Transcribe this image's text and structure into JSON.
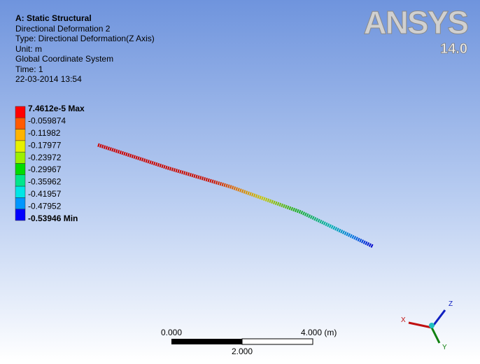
{
  "header": {
    "title": "A: Static Structural",
    "lines": [
      "Directional Deformation 2",
      "Type: Directional Deformation(Z Axis)",
      "Unit: m",
      "Global Coordinate System",
      "Time: 1",
      "22-03-2014 13:54"
    ]
  },
  "legend": {
    "labels": [
      "7.4612e-5 Max",
      "-0.059874",
      "-0.11982",
      "-0.17977",
      "-0.23972",
      "-0.29967",
      "-0.35962",
      "-0.41957",
      "-0.47952",
      "-0.53946 Min"
    ],
    "colors": [
      "#ff0000",
      "#ff5a00",
      "#ffb400",
      "#e6f000",
      "#9cf000",
      "#00dc00",
      "#00e68c",
      "#00e6e6",
      "#0096ff",
      "#0000ff"
    ]
  },
  "logo": {
    "brand": "ANSYS",
    "version": "14.0"
  },
  "scale_bar": {
    "start": "0.000",
    "end": "4.000 (m)",
    "middle": "2.000"
  },
  "triad": {
    "x": "X",
    "y": "Y",
    "z": "Z"
  }
}
